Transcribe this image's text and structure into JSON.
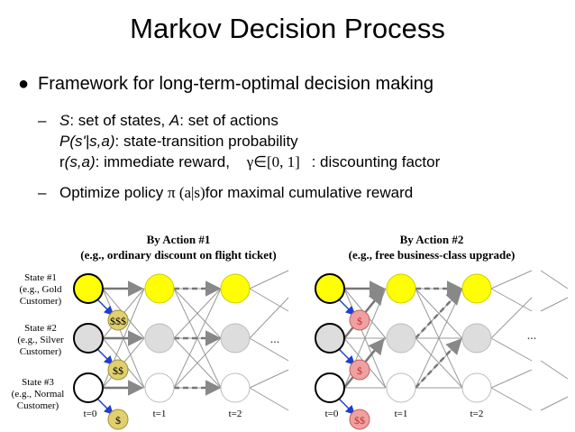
{
  "title": "Markov Decision Process",
  "bullets": {
    "main": "Framework for long-term-optimal decision making",
    "s_symbol": "S",
    "s_text": ": set of states, ",
    "a_symbol": "A",
    "a_text": ": set of actions",
    "p_symbol": "P(s'|s,a)",
    "p_text": ": state-transition probability",
    "r_prefix": "r",
    "r_symbol": "(s,a)",
    "r_text": ": immediate reward,",
    "gamma_expr": "γ∈[0, 1]",
    "gamma_text": ": discounting factor",
    "opt_text": "Optimize policy ",
    "pi_expr": "π (a|s)",
    "opt_text2": "for maximal cumulative reward"
  },
  "diagram": {
    "action1_title": "By Action #1",
    "action1_sub": "(e.g., ordinary discount on flight ticket)",
    "action2_title": "By Action #2",
    "action2_sub": "(e.g., free business-class upgrade)",
    "state1_l1": "State #1",
    "state1_l2": "(e.g., Gold",
    "state1_l3": "Customer)",
    "state2_l1": "State #2",
    "state2_l2": "(e.g., Silver",
    "state2_l3": "Customer)",
    "state3_l1": "State #3",
    "state3_l2": "(e.g., Normal",
    "state3_l3": "Customer)",
    "t0": "t=0",
    "t1": "t=1",
    "t2": "t=2",
    "ellipsis": "...",
    "reward_a1": [
      "$$$",
      "$$",
      "$"
    ],
    "reward_a2": [
      "$",
      "$",
      "$$"
    ],
    "colors": {
      "gold": "#ffff00",
      "silver": "#dddddd",
      "normal": "#ffffff",
      "reward_a1": "#e0d070",
      "reward_a2": "#f0a0a0",
      "arrow_blue": "#1f3fcf"
    }
  }
}
